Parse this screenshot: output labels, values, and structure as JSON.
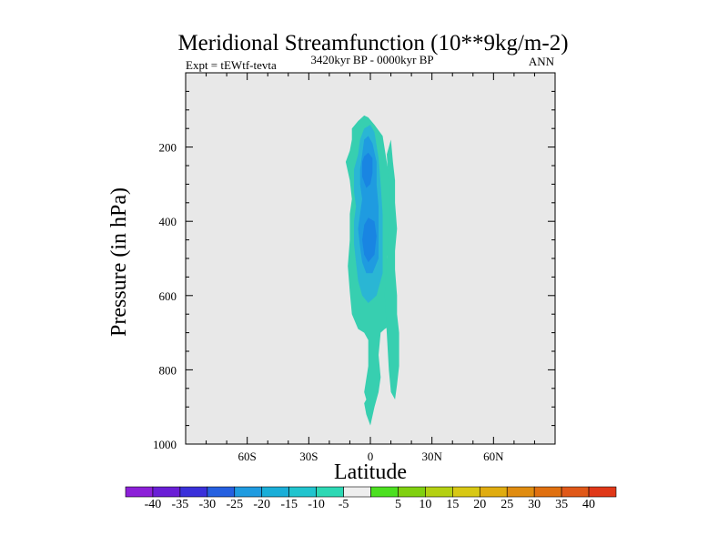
{
  "chart_data": {
    "type": "contour",
    "title": "Meridional Streamfunction (10**9kg/m-2)",
    "subtitle_left": "Expt = tEWtf-tevta",
    "subtitle_center": "3420kyr BP - 0000kyr BP",
    "subtitle_right": "ANN",
    "xlabel": "Latitude",
    "ylabel": "Pressure (in hPa)",
    "xlim": [
      -90,
      90
    ],
    "ylim": [
      1000,
      0
    ],
    "x_ticks": [
      {
        "value": -60,
        "label": "60S"
      },
      {
        "value": -30,
        "label": "30S"
      },
      {
        "value": 0,
        "label": "0"
      },
      {
        "value": 30,
        "label": "30N"
      },
      {
        "value": 60,
        "label": "60N"
      }
    ],
    "x_minor_step": 10,
    "y_ticks": [
      {
        "value": 200,
        "label": "200"
      },
      {
        "value": 400,
        "label": "400"
      },
      {
        "value": 600,
        "label": "600"
      },
      {
        "value": 800,
        "label": "800"
      },
      {
        "value": 1000,
        "label": "1000"
      }
    ],
    "y_minor_step": 50,
    "background_color": "#e8e8e8",
    "contour_regions": [
      {
        "level": "-10 to -5",
        "color": "#37cfb0",
        "points": [
          [
            -9,
            180
          ],
          [
            -10,
            210
          ],
          [
            -12,
            240
          ],
          [
            -10,
            290
          ],
          [
            -9,
            340
          ],
          [
            -10,
            380
          ],
          [
            -10,
            450
          ],
          [
            -11,
            520
          ],
          [
            -10,
            590
          ],
          [
            -9,
            650
          ],
          [
            -6,
            690
          ],
          [
            -3,
            700
          ],
          [
            -1,
            720
          ],
          [
            -1,
            790
          ],
          [
            -3,
            860
          ],
          [
            -2,
            880
          ],
          [
            -3,
            890
          ],
          [
            -2,
            920
          ],
          [
            0,
            950
          ],
          [
            2,
            900
          ],
          [
            4,
            860
          ],
          [
            5,
            820
          ],
          [
            4,
            760
          ],
          [
            5,
            700
          ],
          [
            7,
            690
          ],
          [
            10,
            680
          ],
          [
            11,
            650
          ],
          [
            9,
            600
          ],
          [
            8,
            500
          ],
          [
            10,
            420
          ],
          [
            10,
            300
          ],
          [
            8,
            240
          ],
          [
            6,
            170
          ],
          [
            2,
            140
          ],
          [
            -1,
            120
          ],
          [
            -3,
            115
          ],
          [
            -6,
            130
          ],
          [
            -9,
            150
          ]
        ]
      },
      {
        "level": "-10 to -5",
        "color": "#37cfb0",
        "points": [
          [
            8,
            220
          ],
          [
            10,
            180
          ],
          [
            11,
            240
          ],
          [
            12,
            290
          ],
          [
            12,
            350
          ],
          [
            13,
            420
          ],
          [
            12,
            480
          ],
          [
            12,
            530
          ],
          [
            13,
            600
          ],
          [
            13,
            650
          ],
          [
            14,
            700
          ],
          [
            14,
            790
          ],
          [
            13,
            840
          ],
          [
            12,
            880
          ],
          [
            10,
            860
          ],
          [
            9,
            800
          ],
          [
            8,
            700
          ],
          [
            7,
            600
          ],
          [
            8,
            500
          ],
          [
            9,
            420
          ],
          [
            9,
            300
          ]
        ]
      },
      {
        "level": "-15 to -10",
        "color": "#2ab6d4",
        "points": [
          [
            -6,
            220
          ],
          [
            -8,
            260
          ],
          [
            -8,
            320
          ],
          [
            -7,
            360
          ],
          [
            -8,
            400
          ],
          [
            -8,
            460
          ],
          [
            -7,
            510
          ],
          [
            -6,
            560
          ],
          [
            -4,
            600
          ],
          [
            -1,
            620
          ],
          [
            3,
            600
          ],
          [
            6,
            540
          ],
          [
            6,
            460
          ],
          [
            6,
            380
          ],
          [
            5,
            300
          ],
          [
            4,
            230
          ],
          [
            2,
            160
          ],
          [
            0,
            140
          ],
          [
            -3,
            150
          ],
          [
            -5,
            180
          ]
        ]
      },
      {
        "level": "-20 to -15",
        "color": "#1f9be0",
        "points": [
          [
            -4,
            220
          ],
          [
            -5,
            260
          ],
          [
            -5,
            300
          ],
          [
            -4,
            340
          ],
          [
            -5,
            380
          ],
          [
            -6,
            420
          ],
          [
            -5,
            470
          ],
          [
            -4,
            510
          ],
          [
            -2,
            540
          ],
          [
            1,
            540
          ],
          [
            4,
            500
          ],
          [
            4,
            420
          ],
          [
            4,
            360
          ],
          [
            3,
            300
          ],
          [
            3,
            240
          ],
          [
            1,
            190
          ],
          [
            -1,
            170
          ],
          [
            -3,
            180
          ]
        ]
      },
      {
        "level": "-25 to -20",
        "color": "#1985e2",
        "points": [
          [
            -4,
            240
          ],
          [
            -4,
            280
          ],
          [
            -2,
            310
          ],
          [
            0,
            300
          ],
          [
            1,
            270
          ],
          [
            1,
            230
          ],
          [
            -1,
            215
          ],
          [
            -3,
            225
          ]
        ]
      },
      {
        "level": "-25 to -20",
        "color": "#1985e2",
        "points": [
          [
            -3,
            410
          ],
          [
            -4,
            450
          ],
          [
            -3,
            490
          ],
          [
            -1,
            510
          ],
          [
            2,
            490
          ],
          [
            3,
            440
          ],
          [
            2,
            400
          ],
          [
            -1,
            390
          ]
        ]
      }
    ],
    "colorbar": {
      "colors": [
        "#8c20d8",
        "#6a1ed6",
        "#3a30da",
        "#2560e0",
        "#1f9be0",
        "#1aaed8",
        "#21c4ce",
        "#2dd8b4",
        "#eeeeee",
        "#4ce020",
        "#80d010",
        "#b4d012",
        "#d8c814",
        "#e0ac10",
        "#e08c10",
        "#e07010",
        "#e05818",
        "#e03818"
      ],
      "labels": [
        "-40",
        "-35",
        "-30",
        "-25",
        "-20",
        "-15",
        "-10",
        "-5",
        "5",
        "10",
        "15",
        "20",
        "25",
        "30",
        "35",
        "40"
      ]
    }
  }
}
